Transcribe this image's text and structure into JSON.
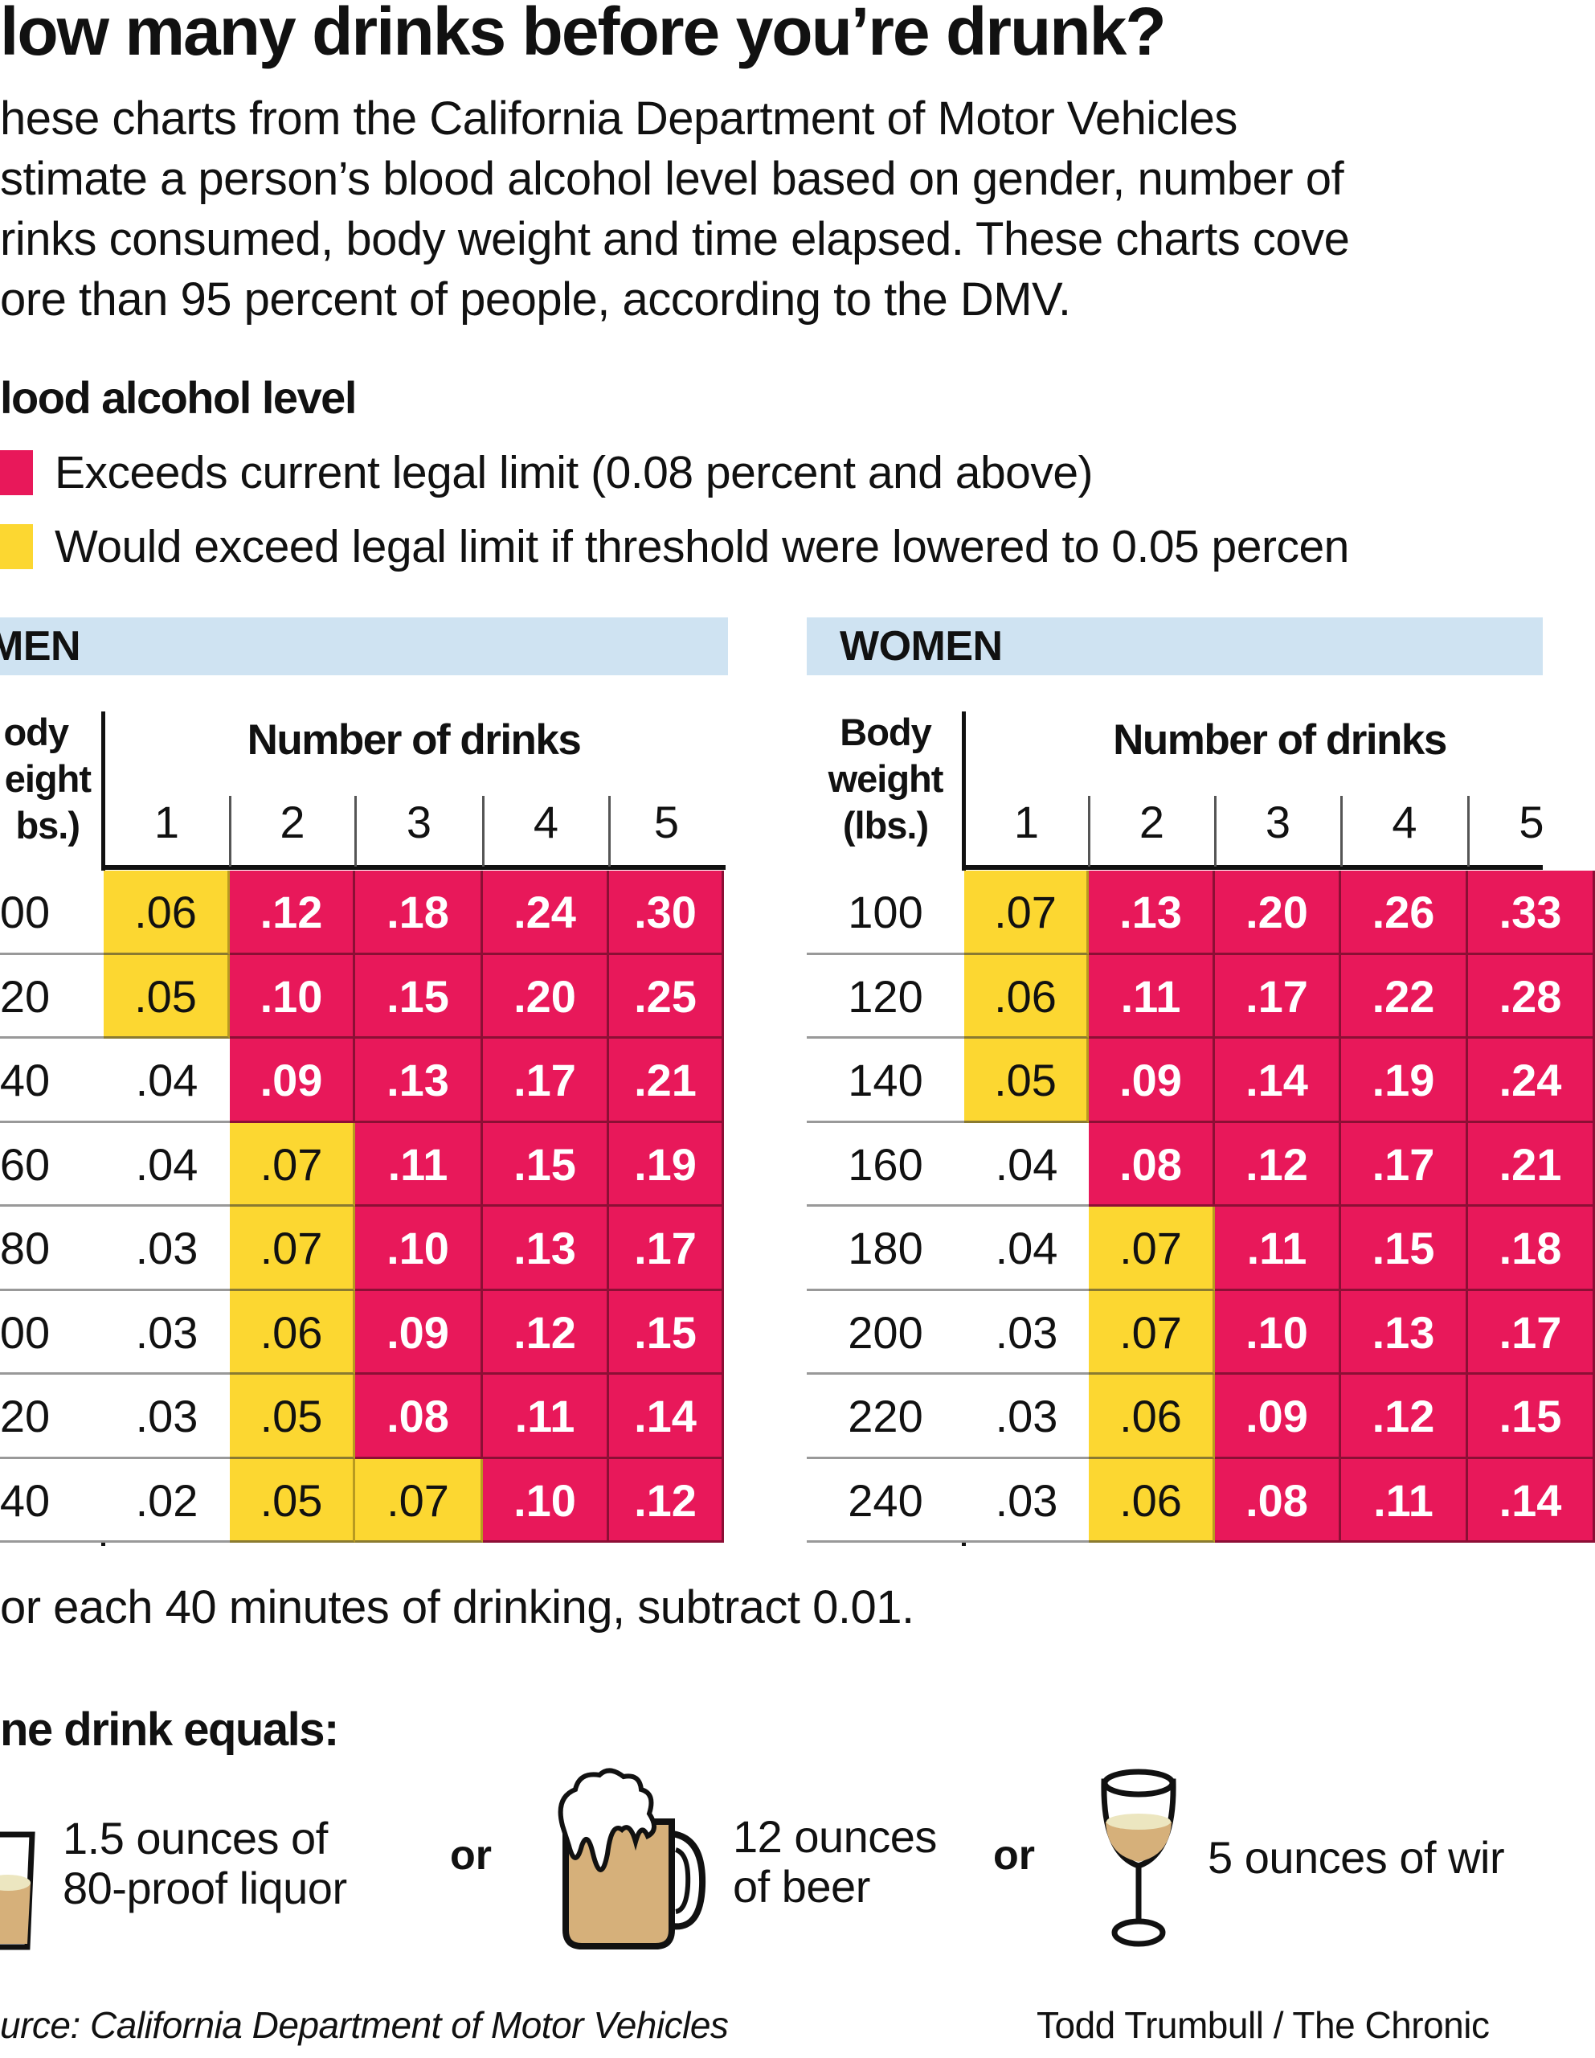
{
  "title": "low many drinks before you’re drunk?",
  "intro_lines": [
    "hese charts from the California Department of Motor Vehicles",
    "stimate a person’s blood alcohol level based on gender, number of",
    "rinks consumed, body weight and time elapsed. These charts cove",
    "ore than 95 percent of people, according to the DMV."
  ],
  "legend": {
    "title": "lood alcohol level",
    "items": [
      {
        "label": "Exceeds current legal limit (0.08 percent and above)",
        "color": "#e8185a",
        "threshold": 0.08
      },
      {
        "label": "Would exceed legal limit if threshold were lowered to 0.05 percen",
        "color": "#fcd731",
        "threshold": 0.05
      }
    ]
  },
  "chart_data": [
    {
      "type": "table",
      "title": "MEN",
      "row_header": [
        "ody",
        "eight",
        "bs.)"
      ],
      "column_group_label": "Number of drinks",
      "columns": [
        "1",
        "2",
        "3",
        "4",
        "5"
      ],
      "rows": [
        {
          "weight": "00",
          "values": [
            ".06",
            ".12",
            ".18",
            ".24",
            ".30"
          ]
        },
        {
          "weight": "20",
          "values": [
            ".05",
            ".10",
            ".15",
            ".20",
            ".25"
          ]
        },
        {
          "weight": "40",
          "values": [
            ".04",
            ".09",
            ".13",
            ".17",
            ".21"
          ]
        },
        {
          "weight": "60",
          "values": [
            ".04",
            ".07",
            ".11",
            ".15",
            ".19"
          ]
        },
        {
          "weight": "80",
          "values": [
            ".03",
            ".07",
            ".10",
            ".13",
            ".17"
          ]
        },
        {
          "weight": "00",
          "values": [
            ".03",
            ".06",
            ".09",
            ".12",
            ".15"
          ]
        },
        {
          "weight": "20",
          "values": [
            ".03",
            ".05",
            ".08",
            ".11",
            ".14"
          ]
        },
        {
          "weight": "40",
          "values": [
            ".02",
            ".05",
            ".07",
            ".10",
            ".12"
          ]
        }
      ]
    },
    {
      "type": "table",
      "title": "WOMEN",
      "row_header": [
        "Body",
        "weight",
        "(lbs.)"
      ],
      "column_group_label": "Number of drinks",
      "columns": [
        "1",
        "2",
        "3",
        "4",
        "5"
      ],
      "rows": [
        {
          "weight": "100",
          "values": [
            ".07",
            ".13",
            ".20",
            ".26",
            ".33"
          ]
        },
        {
          "weight": "120",
          "values": [
            ".06",
            ".11",
            ".17",
            ".22",
            ".28"
          ]
        },
        {
          "weight": "140",
          "values": [
            ".05",
            ".09",
            ".14",
            ".19",
            ".24"
          ]
        },
        {
          "weight": "160",
          "values": [
            ".04",
            ".08",
            ".12",
            ".17",
            ".21"
          ]
        },
        {
          "weight": "180",
          "values": [
            ".04",
            ".07",
            ".11",
            ".15",
            ".18"
          ]
        },
        {
          "weight": "200",
          "values": [
            ".03",
            ".07",
            ".10",
            ".13",
            ".17"
          ]
        },
        {
          "weight": "220",
          "values": [
            ".03",
            ".06",
            ".09",
            ".12",
            ".15"
          ]
        },
        {
          "weight": "240",
          "values": [
            ".03",
            ".06",
            ".08",
            ".11",
            ".14"
          ]
        }
      ]
    }
  ],
  "footnote": "or each 40 minutes of drinking, subtract 0.01.",
  "equals": {
    "title": "ne drink equals:",
    "liquor": [
      "1.5 ounces of",
      "80-proof liquor"
    ],
    "or": "or",
    "beer": [
      "12 ounces",
      "of beer"
    ],
    "wine": "5 ounces of wir",
    "icons": [
      "shot-glass-icon",
      "beer-mug-icon",
      "wine-glass-icon"
    ],
    "drink_fill_color": "#d6b07a"
  },
  "source": "urce: California Department of Motor Vehicles",
  "credit": "Todd Trumbull / The Chronic"
}
